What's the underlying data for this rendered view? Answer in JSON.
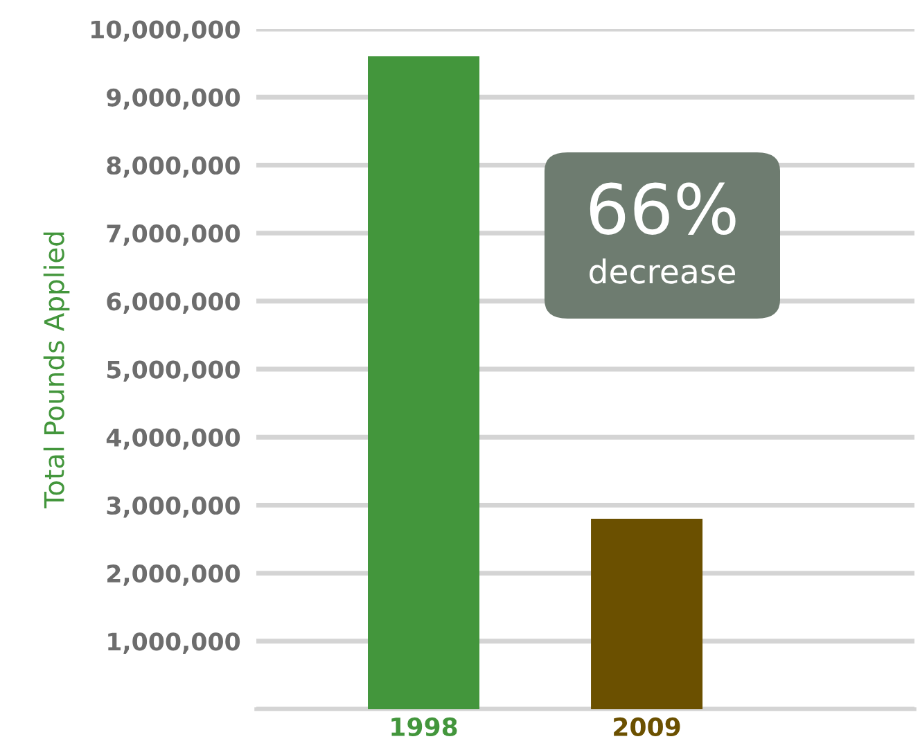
{
  "chart_data": {
    "type": "bar",
    "categories": [
      "1998",
      "2009"
    ],
    "values": [
      9600000,
      2800000
    ],
    "colors": [
      "#43963c",
      "#6b5000"
    ],
    "ylabel": "Total Pounds Applied",
    "ylim": [
      0,
      10000000
    ],
    "yticks": [
      {
        "value": 0,
        "label": null
      },
      {
        "value": 1000000,
        "label": "1,000,000"
      },
      {
        "value": 2000000,
        "label": "2,000,000"
      },
      {
        "value": 3000000,
        "label": "3,000,000"
      },
      {
        "value": 4000000,
        "label": "4,000,000"
      },
      {
        "value": 5000000,
        "label": "5,000,000"
      },
      {
        "value": 6000000,
        "label": "6,000,000"
      },
      {
        "value": 7000000,
        "label": "7,000,000"
      },
      {
        "value": 8000000,
        "label": "8,000,000"
      },
      {
        "value": 9000000,
        "label": "9,000,000"
      },
      {
        "value": 10000000,
        "label": "10,000,000"
      }
    ],
    "grid": "y",
    "annotations": [
      "66%",
      "decrease"
    ]
  }
}
